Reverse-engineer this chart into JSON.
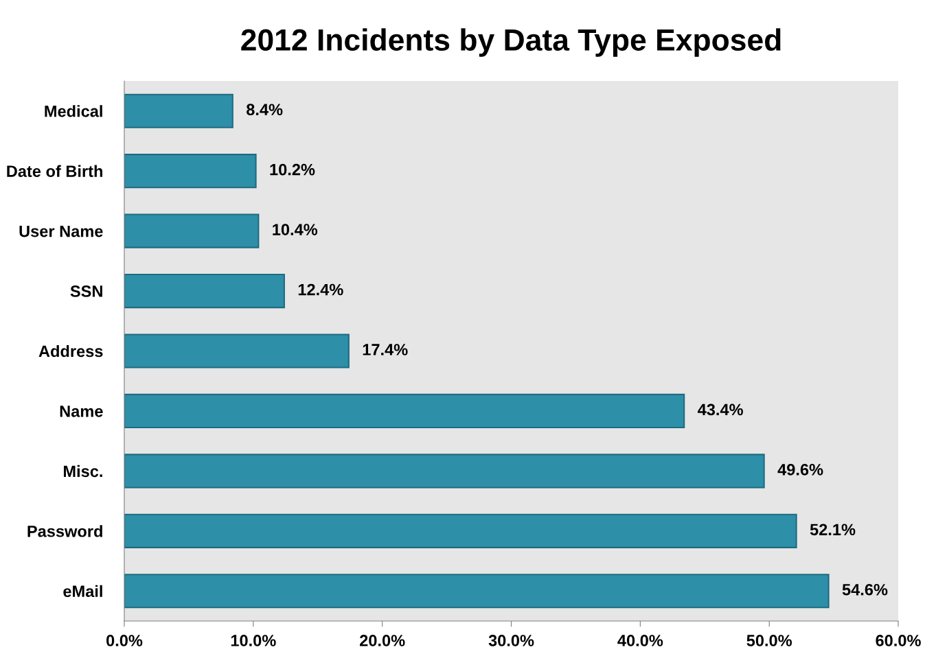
{
  "chart_data": {
    "type": "bar",
    "orientation": "horizontal",
    "title": "2012 Incidents by Data Type Exposed",
    "categories": [
      "Medical",
      "Date of Birth",
      "User Name",
      "SSN",
      "Address",
      "Name",
      "Misc.",
      "Password",
      "eMail"
    ],
    "values": [
      8.4,
      10.2,
      10.4,
      12.4,
      17.4,
      43.4,
      49.6,
      52.1,
      54.6
    ],
    "value_labels": [
      "8.4%",
      "10.2%",
      "10.4%",
      "12.4%",
      "17.4%",
      "43.4%",
      "49.6%",
      "52.1%",
      "54.6%"
    ],
    "color": "#2e8fa8",
    "xlim": [
      0,
      60
    ],
    "xticks": [
      {
        "value": 0,
        "label": "0.0%"
      },
      {
        "value": 10,
        "label": "10.0%"
      },
      {
        "value": 20,
        "label": "20.0%"
      },
      {
        "value": 30,
        "label": "30.0%"
      },
      {
        "value": 40,
        "label": "40.0%"
      },
      {
        "value": 50,
        "label": "50.0%"
      },
      {
        "value": 60,
        "label": "60.0%"
      }
    ],
    "grid": false,
    "legend": false
  }
}
